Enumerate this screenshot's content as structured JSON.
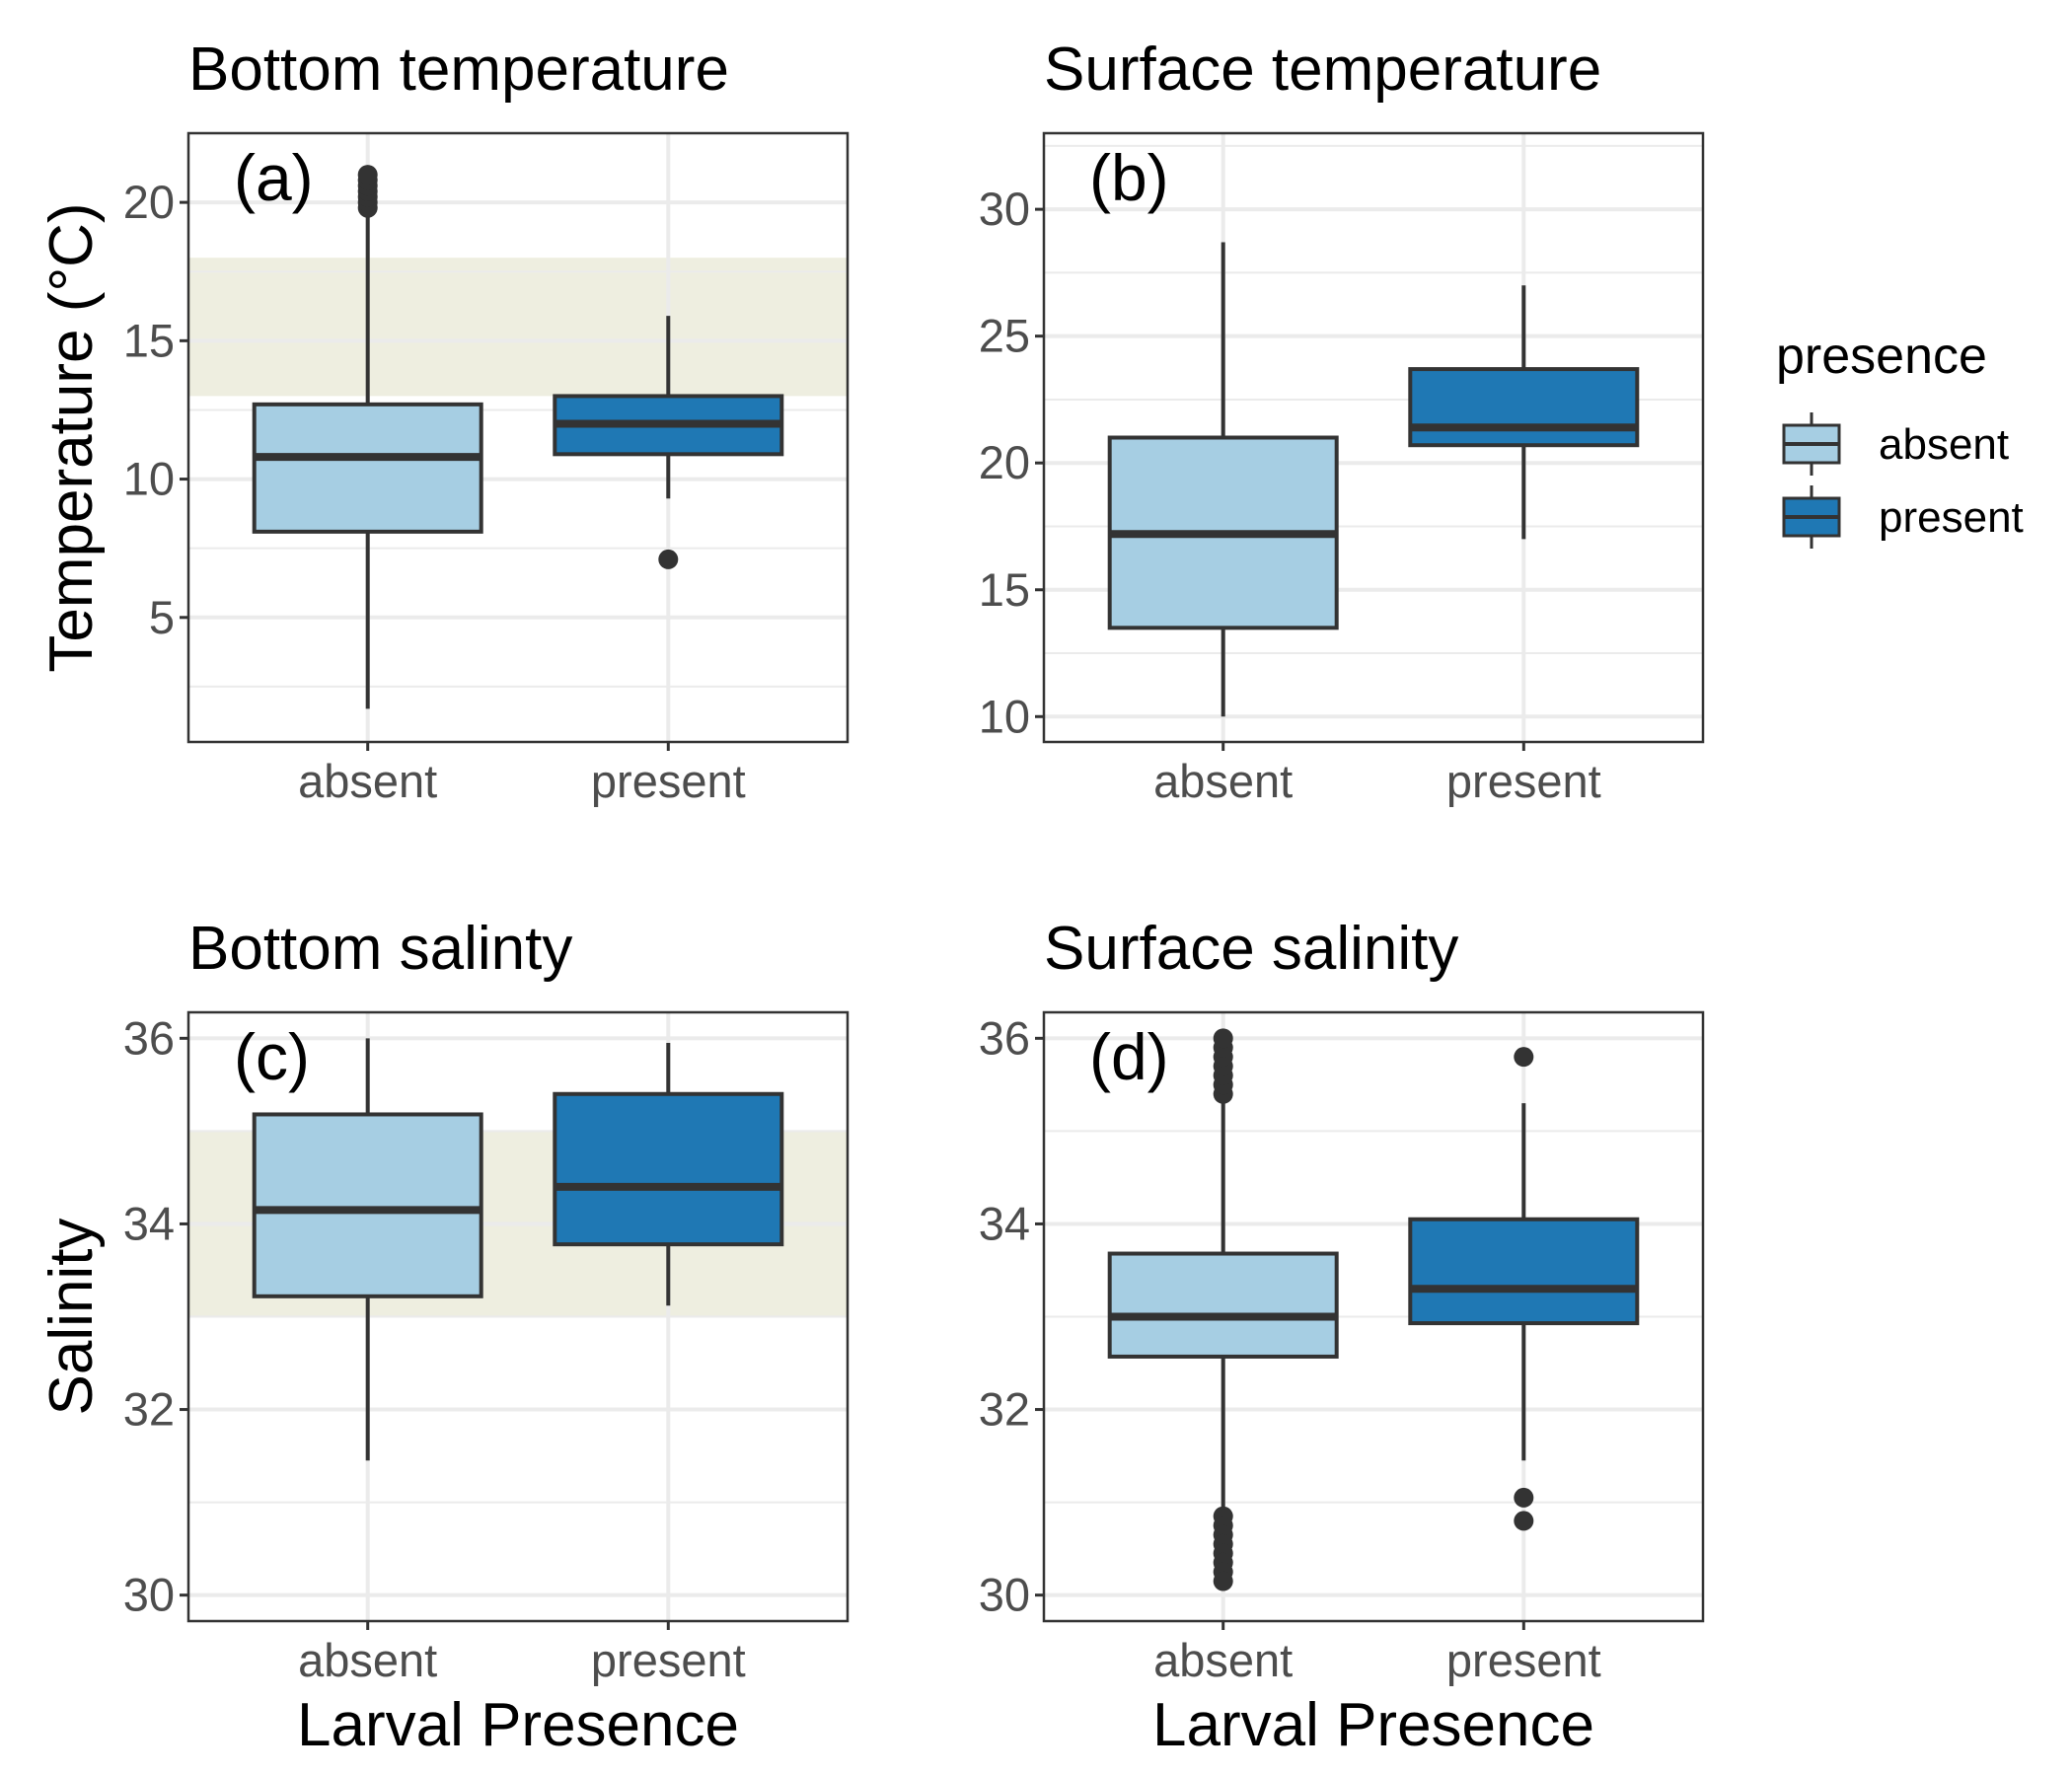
{
  "colors": {
    "absent": "#a6cee3",
    "present": "#1f78b4",
    "box_stroke": "#333333",
    "outlier": "#333333",
    "optimal_band": "#eeeee0",
    "grid": "#ebebeb",
    "panel_border": "#333333",
    "tick_text": "#4d4d4d"
  },
  "legend": {
    "title": "presence",
    "items": [
      {
        "key": "absent",
        "label": "absent"
      },
      {
        "key": "present",
        "label": "present"
      }
    ]
  },
  "chart_data": [
    {
      "type": "box",
      "panel": "top-left",
      "title": "Bottom temperature",
      "tag": "(a)",
      "xlabel": "",
      "ylabel": "Temperature (°C)",
      "ylim": [
        0.5,
        22.5
      ],
      "yticks": [
        5,
        10,
        15,
        20
      ],
      "grid": true,
      "shaded_band": [
        13,
        18
      ],
      "categories": [
        "absent",
        "present"
      ],
      "boxes": [
        {
          "group": "absent",
          "whisker_low": 1.7,
          "q1": 8.1,
          "median": 10.8,
          "q3": 12.7,
          "whisker_high": 19.7,
          "outliers": [
            19.8,
            20.0,
            20.2,
            20.4,
            20.6,
            20.8,
            21.0
          ]
        },
        {
          "group": "present",
          "whisker_low": 9.3,
          "q1": 10.9,
          "median": 12.0,
          "q3": 13.0,
          "whisker_high": 15.9,
          "outliers": [
            7.1
          ]
        }
      ]
    },
    {
      "type": "box",
      "panel": "top-right",
      "title": "Surface temperature",
      "tag": "(b)",
      "xlabel": "",
      "ylabel": "",
      "ylim": [
        9.0,
        33.0
      ],
      "yticks": [
        10,
        15,
        20,
        25,
        30
      ],
      "grid": true,
      "categories": [
        "absent",
        "present"
      ],
      "boxes": [
        {
          "group": "absent",
          "whisker_low": 10.0,
          "q1": 13.5,
          "median": 17.2,
          "q3": 21.0,
          "whisker_high": 28.7,
          "outliers": []
        },
        {
          "group": "present",
          "whisker_low": 17.0,
          "q1": 20.7,
          "median": 21.4,
          "q3": 23.7,
          "whisker_high": 27.0,
          "outliers": []
        }
      ]
    },
    {
      "type": "box",
      "panel": "bottom-left",
      "title": "Bottom salinty",
      "tag": "(c)",
      "xlabel": "Larval Presence",
      "ylabel": "Salinity",
      "ylim": [
        29.72,
        36.28
      ],
      "yticks": [
        30,
        32,
        34,
        36
      ],
      "grid": true,
      "shaded_band": [
        33,
        35
      ],
      "categories": [
        "absent",
        "present"
      ],
      "boxes": [
        {
          "group": "absent",
          "whisker_low": 31.45,
          "q1": 33.22,
          "median": 34.15,
          "q3": 35.18,
          "whisker_high": 36.0,
          "outliers": []
        },
        {
          "group": "present",
          "whisker_low": 33.12,
          "q1": 33.78,
          "median": 34.4,
          "q3": 35.4,
          "whisker_high": 35.95,
          "outliers": []
        }
      ]
    },
    {
      "type": "box",
      "panel": "bottom-right",
      "title": "Surface salinity",
      "tag": "(d)",
      "xlabel": "Larval Presence",
      "ylabel": "",
      "ylim": [
        29.72,
        36.28
      ],
      "yticks": [
        30,
        32,
        34,
        36
      ],
      "grid": true,
      "categories": [
        "absent",
        "present"
      ],
      "boxes": [
        {
          "group": "absent",
          "whisker_low": 30.9,
          "q1": 32.57,
          "median": 33.0,
          "q3": 33.68,
          "whisker_high": 35.3,
          "outliers": [
            35.4,
            35.5,
            35.6,
            35.7,
            35.8,
            35.9,
            36.0,
            30.85,
            30.75,
            30.65,
            30.55,
            30.45,
            30.35,
            30.25,
            30.15
          ]
        },
        {
          "group": "present",
          "whisker_low": 31.45,
          "q1": 32.93,
          "median": 33.3,
          "q3": 34.05,
          "whisker_high": 35.3,
          "outliers": [
            35.8,
            31.05,
            30.8
          ]
        }
      ]
    }
  ]
}
